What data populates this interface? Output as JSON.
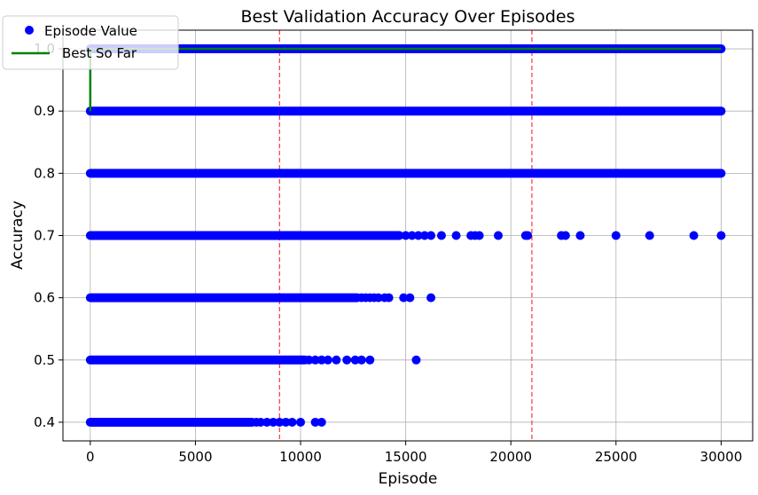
{
  "chart_data": {
    "type": "scatter",
    "title": "Best Validation Accuracy Over Episodes",
    "xlabel": "Episode",
    "ylabel": "Accuracy",
    "xlim": [
      -1300,
      31500
    ],
    "ylim": [
      0.37,
      1.03
    ],
    "xticks": [
      0,
      5000,
      10000,
      15000,
      20000,
      25000,
      30000
    ],
    "yticks": [
      0.4,
      0.5,
      0.6,
      0.7,
      0.8,
      0.9,
      1.0
    ],
    "ytick_labels": [
      "0.4",
      "0.5",
      "0.6",
      "0.7",
      "0.8",
      "0.9",
      "1.0"
    ],
    "grid": true,
    "legend_position": "top-left",
    "colors": {
      "points": "#0000ff",
      "best": "#008000",
      "vline": "#ff3333",
      "grid": "#b0b0b0"
    },
    "series": [
      {
        "name": "Episode Value",
        "kind": "scatter",
        "levels": [
          {
            "y": 1.0,
            "dense": [
              [
                0,
                30000
              ]
            ],
            "extra": []
          },
          {
            "y": 0.9,
            "dense": [
              [
                0,
                30000
              ]
            ],
            "extra": []
          },
          {
            "y": 0.8,
            "dense": [
              [
                0,
                30000
              ]
            ],
            "extra": []
          },
          {
            "y": 0.7,
            "dense": [
              [
                0,
                14700
              ]
            ],
            "extra": [
              15000,
              15300,
              15600,
              15900,
              16200,
              16700,
              17400,
              18100,
              18300,
              18500,
              19400,
              20700,
              20800,
              22400,
              22600,
              23300,
              25000,
              26600,
              28700,
              30000
            ]
          },
          {
            "y": 0.6,
            "dense": [
              [
                0,
                12700
              ]
            ],
            "extra": [
              12900,
              13100,
              13300,
              13500,
              13700,
              14000,
              14200,
              14900,
              15200,
              16200
            ]
          },
          {
            "y": 0.5,
            "dense": [
              [
                0,
                10200
              ]
            ],
            "extra": [
              10400,
              10700,
              11000,
              11300,
              11700,
              12200,
              12600,
              12900,
              13300,
              15500
            ]
          },
          {
            "y": 0.4,
            "dense": [
              [
                0,
                7700
              ]
            ],
            "extra": [
              7900,
              8100,
              8400,
              8700,
              9000,
              9300,
              9600,
              10000,
              10700,
              11000
            ]
          }
        ]
      },
      {
        "name": "Best So Far",
        "kind": "line",
        "x": [
          0,
          0,
          30000
        ],
        "y": [
          0.9,
          1.0,
          1.0
        ]
      }
    ],
    "vlines": [
      9000,
      21000
    ]
  }
}
